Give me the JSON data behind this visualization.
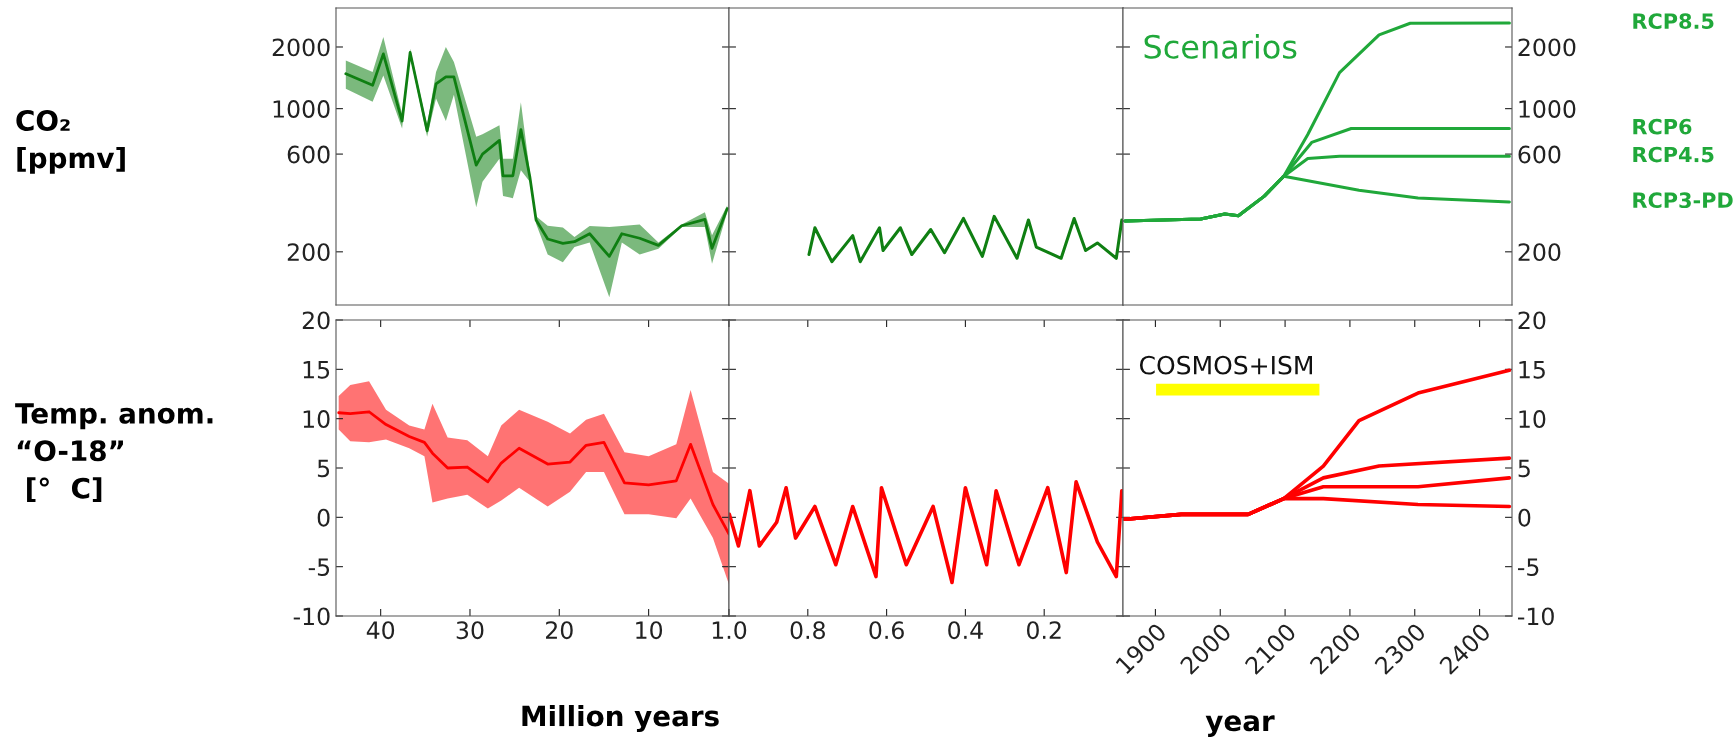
{
  "chart_data": [
    {
      "type": "line",
      "ylabel": "CO₂\n[ppmv]",
      "log": true,
      "xlim": [
        45,
        1
      ],
      "ylim": [
        110,
        3100
      ],
      "yticks": [
        200,
        600,
        1000,
        2000
      ],
      "tick_labels": "y",
      "series": [
        {
          "color": "#0f7f12",
          "x": [
            43.9,
            40.9,
            39.7,
            37.6,
            36.7,
            34.8,
            33.8,
            32.7,
            31.8,
            29.3,
            28.6,
            26.7,
            26.3,
            25.2,
            24.3,
            23.3,
            22.6,
            21.3,
            19.6,
            18.3,
            16.6,
            14.4,
            13.0,
            11.0,
            8.9,
            6.3,
            3.7,
            2.9,
            1.2
          ],
          "values": [
            1480,
            1300,
            1850,
            870,
            1880,
            780,
            1320,
            1430,
            1430,
            530,
            600,
            700,
            470,
            470,
            790,
            465,
            286,
            231,
            220,
            224,
            245,
            190,
            245,
            233,
            215,
            268,
            288,
            208,
            325
          ],
          "lower": [
            1250,
            1080,
            1450,
            800,
            1800,
            730,
            1120,
            870,
            1170,
            330,
            440,
            570,
            375,
            365,
            500,
            440,
            274,
            194,
            178,
            211,
            222,
            120,
            222,
            194,
            207,
            264,
            264,
            175,
            312
          ],
          "upper": [
            1720,
            1510,
            2240,
            945,
            1960,
            830,
            1510,
            2000,
            1690,
            730,
            750,
            830,
            570,
            570,
            1075,
            490,
            298,
            268,
            263,
            236,
            267,
            264,
            267,
            272,
            222,
            272,
            312,
            241,
            337
          ]
        }
      ]
    },
    {
      "type": "line",
      "log": true,
      "xlim": [
        1.0,
        0
      ],
      "ylim": [
        110,
        3100
      ],
      "yticks": [
        200,
        600,
        1000,
        2000
      ],
      "tick_labels": false,
      "series": [
        {
          "color": "#0f7f12",
          "x": [
            0.797,
            0.782,
            0.739,
            0.686,
            0.667,
            0.618,
            0.609,
            0.565,
            0.536,
            0.488,
            0.453,
            0.405,
            0.357,
            0.327,
            0.269,
            0.24,
            0.22,
            0.157,
            0.124,
            0.095,
            0.065,
            0.017,
            0.003
          ],
          "values": [
            194,
            262,
            179,
            240,
            179,
            262,
            203,
            262,
            194,
            257,
            198,
            291,
            190,
            298,
            186,
            286,
            211,
            186,
            291,
            203,
            221,
            186,
            286
          ]
        }
      ]
    },
    {
      "type": "line",
      "log": true,
      "xlim": [
        1850,
        2450
      ],
      "ylim": [
        110,
        3100
      ],
      "yticks": [
        200,
        600,
        1000,
        2000
      ],
      "tick_labels": "y",
      "annotations": [
        "Scenarios"
      ],
      "series": [
        {
          "name": "RCP8.5",
          "color": "#20a83a",
          "x": [
            1853,
            1970,
            2007,
            2028,
            2068,
            2098,
            2135,
            2184,
            2245,
            2293,
            2446
          ],
          "values": [
            283,
            289,
            306,
            300,
            374,
            468,
            748,
            1500,
            2290,
            2610,
            2620
          ]
        },
        {
          "name": "RCP6",
          "color": "#20a83a",
          "x": [
            1853,
            1970,
            2007,
            2028,
            2068,
            2098,
            2141,
            2202,
            2446
          ],
          "values": [
            283,
            289,
            306,
            300,
            374,
            468,
            684,
            800,
            800
          ]
        },
        {
          "name": "RCP4.5",
          "color": "#20a83a",
          "x": [
            1853,
            1970,
            2007,
            2028,
            2068,
            2098,
            2135,
            2184,
            2446
          ],
          "values": [
            283,
            289,
            306,
            300,
            374,
            468,
            571,
            585,
            585
          ]
        },
        {
          "name": "RCP3-PD",
          "color": "#20a83a",
          "x": [
            1853,
            1970,
            2007,
            2028,
            2068,
            2098,
            2214,
            2305,
            2446
          ],
          "values": [
            283,
            289,
            306,
            300,
            374,
            468,
            400,
            366,
            350
          ]
        }
      ]
    },
    {
      "type": "line",
      "ylabel": "Temp. anom.\n“O-18”\n [°  C]",
      "xlabel": "Million years",
      "xlim": [
        45,
        1
      ],
      "xticks": [
        40,
        30,
        20,
        10
      ],
      "ylim": [
        -10,
        20
      ],
      "yticks": [
        -10,
        -5,
        0,
        5,
        10,
        15,
        20
      ],
      "series": [
        {
          "color": "#ff0000",
          "x": [
            44.7,
            43.4,
            41.3,
            39.4,
            36.8,
            35.1,
            34.2,
            32.5,
            30.3,
            28.0,
            26.5,
            24.5,
            21.3,
            18.8,
            17.0,
            15.0,
            12.7,
            10.0,
            6.9,
            5.3,
            2.8,
            1.0
          ],
          "values": [
            10.6,
            10.5,
            10.7,
            9.4,
            8.2,
            7.6,
            6.5,
            5.0,
            5.1,
            3.6,
            5.5,
            7.0,
            5.4,
            5.6,
            7.3,
            7.6,
            3.5,
            3.3,
            3.7,
            7.4,
            1.3,
            -1.7
          ],
          "lower": [
            8.9,
            7.7,
            7.6,
            7.9,
            7.0,
            6.2,
            1.5,
            1.9,
            2.3,
            0.9,
            1.7,
            3.0,
            1.1,
            2.6,
            4.6,
            4.6,
            0.3,
            0.3,
            -0.1,
            1.9,
            -2.1,
            -6.8
          ],
          "upper": [
            12.3,
            13.4,
            13.8,
            10.9,
            9.3,
            8.9,
            11.5,
            8.1,
            7.8,
            6.2,
            9.3,
            10.9,
            9.7,
            8.5,
            9.9,
            10.5,
            6.6,
            6.2,
            7.4,
            12.9,
            4.6,
            3.4
          ]
        }
      ]
    },
    {
      "type": "line",
      "xlim": [
        1.0,
        0
      ],
      "xticks": [
        {
          "value": 1.0,
          "label": "1.0"
        },
        0.8,
        0.6,
        0.4,
        0.2
      ],
      "ylim": [
        -10,
        20
      ],
      "yticks": [
        -10,
        -5,
        0,
        5,
        10,
        15,
        20
      ],
      "tick_labels": "x",
      "series": [
        {
          "color": "#ff0000",
          "x": [
            0.999,
            0.976,
            0.947,
            0.923,
            0.879,
            0.855,
            0.831,
            0.782,
            0.729,
            0.686,
            0.627,
            0.613,
            0.55,
            0.482,
            0.434,
            0.4,
            0.346,
            0.322,
            0.264,
            0.191,
            0.144,
            0.119,
            0.065,
            0.017,
            0.003
          ],
          "values": [
            0.3,
            -2.9,
            2.7,
            -2.9,
            -0.5,
            3.0,
            -2.1,
            1.1,
            -4.8,
            1.1,
            -6.0,
            3.0,
            -4.8,
            1.1,
            -6.6,
            3.0,
            -4.8,
            2.7,
            -4.8,
            3.0,
            -5.6,
            3.6,
            -2.5,
            -6.0,
            2.7
          ]
        }
      ]
    },
    {
      "type": "line",
      "xlabel": "year",
      "xlim": [
        1850,
        2450
      ],
      "xticks": [
        1900,
        2000,
        2100,
        2200,
        2300,
        2400
      ],
      "ylim": [
        -10,
        20
      ],
      "yticks": [
        -10,
        -5,
        0,
        5,
        10,
        15,
        20
      ],
      "annotations": [
        "COSMOS+ISM"
      ],
      "series": [
        {
          "color": "#ff0000",
          "x": [
            1853,
            1940,
            2043,
            2098,
            2159,
            2214,
            2305,
            2446
          ],
          "values": [
            -0.2,
            0.3,
            0.3,
            1.9,
            5.2,
            9.8,
            12.6,
            14.9
          ]
        },
        {
          "color": "#ff0000",
          "x": [
            1853,
            1940,
            2043,
            2098,
            2159,
            2245,
            2446
          ],
          "values": [
            -0.2,
            0.3,
            0.3,
            1.9,
            4.0,
            5.2,
            6.0
          ]
        },
        {
          "color": "#ff0000",
          "x": [
            1853,
            1940,
            2043,
            2098,
            2159,
            2305,
            2446
          ],
          "values": [
            -0.2,
            0.3,
            0.3,
            1.9,
            3.1,
            3.1,
            4.0
          ]
        },
        {
          "color": "#ff0000",
          "x": [
            1853,
            1940,
            2043,
            2098,
            2159,
            2305,
            2446
          ],
          "values": [
            -0.2,
            0.3,
            0.3,
            1.9,
            1.9,
            1.3,
            1.1
          ]
        }
      ]
    }
  ]
}
